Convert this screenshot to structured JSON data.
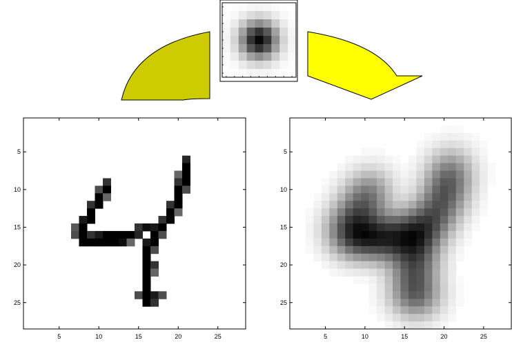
{
  "figure": {
    "kernel": {
      "size": 9,
      "sigma": 1.6
    },
    "arrows": {
      "left": {
        "color": "#cccc00"
      },
      "right": {
        "color": "#ffff00"
      }
    },
    "original": {
      "title": "",
      "grid_size": 28,
      "xticks": [
        "5",
        "10",
        "15",
        "20",
        "25"
      ],
      "yticks": [
        "5",
        "10",
        "15",
        "20",
        "25"
      ],
      "pixels": [
        {
          "row": 6,
          "col": 21,
          "v": 0.85
        },
        {
          "row": 7,
          "col": 21,
          "v": 1.0
        },
        {
          "row": 8,
          "col": 20,
          "v": 0.6
        },
        {
          "row": 8,
          "col": 21,
          "v": 1.0
        },
        {
          "row": 9,
          "col": 11,
          "v": 0.8
        },
        {
          "row": 9,
          "col": 20,
          "v": 0.8
        },
        {
          "row": 9,
          "col": 21,
          "v": 1.0
        },
        {
          "row": 10,
          "col": 10,
          "v": 0.7
        },
        {
          "row": 10,
          "col": 11,
          "v": 1.0
        },
        {
          "row": 10,
          "col": 20,
          "v": 1.0
        },
        {
          "row": 10,
          "col": 21,
          "v": 0.7
        },
        {
          "row": 11,
          "col": 10,
          "v": 1.0
        },
        {
          "row": 11,
          "col": 11,
          "v": 0.6
        },
        {
          "row": 11,
          "col": 20,
          "v": 1.0
        },
        {
          "row": 12,
          "col": 9,
          "v": 0.8
        },
        {
          "row": 12,
          "col": 10,
          "v": 1.0
        },
        {
          "row": 12,
          "col": 19,
          "v": 0.8
        },
        {
          "row": 12,
          "col": 20,
          "v": 1.0
        },
        {
          "row": 13,
          "col": 9,
          "v": 1.0
        },
        {
          "row": 13,
          "col": 19,
          "v": 1.0
        },
        {
          "row": 13,
          "col": 20,
          "v": 0.6
        },
        {
          "row": 14,
          "col": 8,
          "v": 0.9
        },
        {
          "row": 14,
          "col": 9,
          "v": 1.0
        },
        {
          "row": 14,
          "col": 18,
          "v": 0.8
        },
        {
          "row": 14,
          "col": 19,
          "v": 1.0
        },
        {
          "row": 15,
          "col": 7,
          "v": 0.65
        },
        {
          "row": 15,
          "col": 8,
          "v": 1.0
        },
        {
          "row": 15,
          "col": 15,
          "v": 0.8
        },
        {
          "row": 15,
          "col": 16,
          "v": 0.95
        },
        {
          "row": 15,
          "col": 17,
          "v": 0.9
        },
        {
          "row": 15,
          "col": 18,
          "v": 1.0
        },
        {
          "row": 16,
          "col": 7,
          "v": 0.7
        },
        {
          "row": 16,
          "col": 8,
          "v": 1.0
        },
        {
          "row": 16,
          "col": 9,
          "v": 0.8
        },
        {
          "row": 16,
          "col": 10,
          "v": 0.9
        },
        {
          "row": 16,
          "col": 11,
          "v": 1.0
        },
        {
          "row": 16,
          "col": 12,
          "v": 1.0
        },
        {
          "row": 16,
          "col": 13,
          "v": 1.0
        },
        {
          "row": 16,
          "col": 14,
          "v": 1.0
        },
        {
          "row": 16,
          "col": 15,
          "v": 0.85
        },
        {
          "row": 16,
          "col": 17,
          "v": 1.0
        },
        {
          "row": 16,
          "col": 18,
          "v": 0.7
        },
        {
          "row": 17,
          "col": 8,
          "v": 1.0
        },
        {
          "row": 17,
          "col": 9,
          "v": 1.0
        },
        {
          "row": 17,
          "col": 10,
          "v": 1.0
        },
        {
          "row": 17,
          "col": 11,
          "v": 1.0
        },
        {
          "row": 17,
          "col": 12,
          "v": 1.0
        },
        {
          "row": 17,
          "col": 13,
          "v": 0.95
        },
        {
          "row": 17,
          "col": 14,
          "v": 0.6
        },
        {
          "row": 17,
          "col": 16,
          "v": 0.9
        },
        {
          "row": 17,
          "col": 17,
          "v": 1.0
        },
        {
          "row": 18,
          "col": 16,
          "v": 1.0
        },
        {
          "row": 18,
          "col": 17,
          "v": 0.7
        },
        {
          "row": 19,
          "col": 16,
          "v": 1.0
        },
        {
          "row": 20,
          "col": 16,
          "v": 1.0
        },
        {
          "row": 20,
          "col": 17,
          "v": 0.8
        },
        {
          "row": 21,
          "col": 16,
          "v": 1.0
        },
        {
          "row": 21,
          "col": 17,
          "v": 0.6
        },
        {
          "row": 22,
          "col": 16,
          "v": 1.0
        },
        {
          "row": 23,
          "col": 16,
          "v": 1.0
        },
        {
          "row": 24,
          "col": 15,
          "v": 0.7
        },
        {
          "row": 24,
          "col": 16,
          "v": 1.0
        },
        {
          "row": 24,
          "col": 17,
          "v": 0.9
        },
        {
          "row": 24,
          "col": 18,
          "v": 0.7
        },
        {
          "row": 25,
          "col": 16,
          "v": 1.0
        },
        {
          "row": 25,
          "col": 17,
          "v": 0.8
        }
      ]
    },
    "blurred": {
      "title": "",
      "grid_size": 28,
      "xticks": [
        "5",
        "10",
        "15",
        "20",
        "25"
      ],
      "yticks": [
        "5",
        "10",
        "15",
        "20",
        "25"
      ]
    }
  }
}
